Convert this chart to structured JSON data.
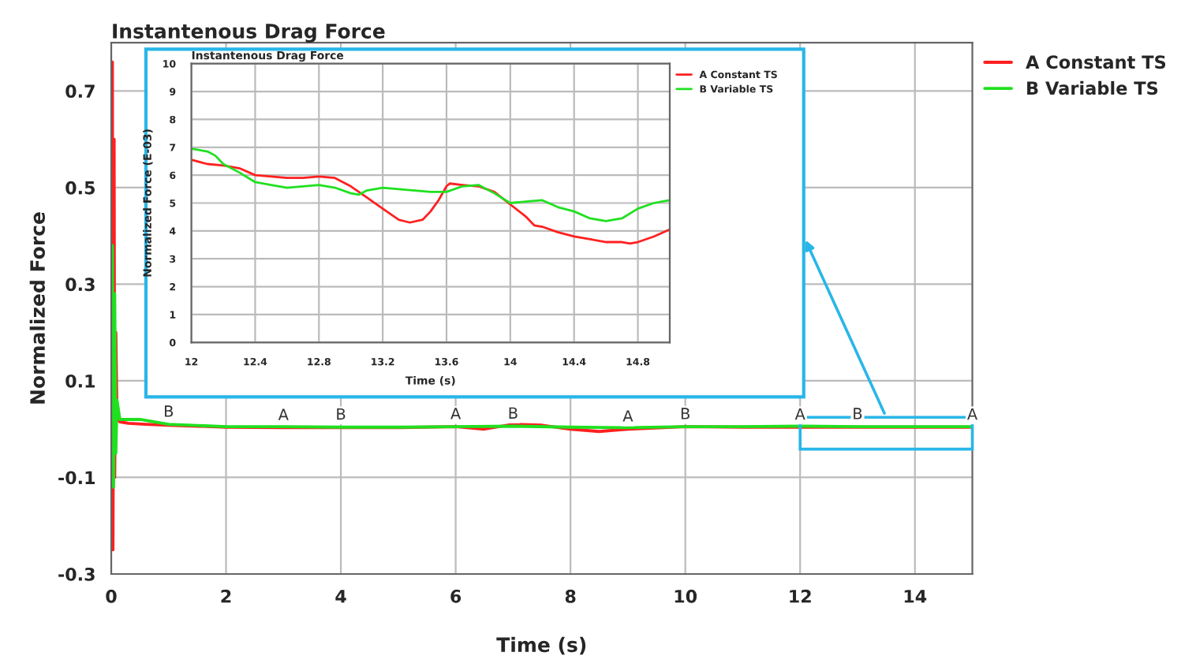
{
  "chart_data": [
    {
      "type": "line",
      "title": "Instantenous Drag Force",
      "xlabel": "Time (s)",
      "ylabel": "Normalized Force",
      "xlim": [
        0,
        15
      ],
      "xticks": [
        0,
        2,
        4,
        6,
        8,
        10,
        12,
        14
      ],
      "ylim": [
        -0.3,
        0.8
      ],
      "yticks": [
        -0.3,
        -0.1,
        0.1,
        0.3,
        0.5,
        0.7
      ],
      "grid": true,
      "legend": "top right",
      "series": [
        {
          "name": "A Constant TS",
          "color": "#ff2020",
          "x": [
            0,
            0.02,
            0.03,
            0.05,
            0.06,
            0.08,
            0.1,
            0.15,
            0.3,
            0.6,
            1,
            2,
            3,
            4,
            5,
            6,
            6.5,
            7,
            7.5,
            8,
            8.5,
            9,
            10,
            11,
            12,
            13,
            14,
            15
          ],
          "values": [
            0,
            0.76,
            -0.25,
            0.6,
            -0.1,
            0.2,
            0.02,
            0.015,
            0.012,
            0.01,
            0.008,
            0.004,
            0.003,
            0.003,
            0.003,
            0.005,
            0.0,
            0.01,
            0.008,
            0.0,
            -0.005,
            0.0,
            0.005,
            0.004,
            0.004,
            0.004,
            0.004,
            0.004
          ]
        },
        {
          "name": "B Variable TS",
          "color": "#20e020",
          "x": [
            0,
            0.02,
            0.04,
            0.06,
            0.08,
            0.1,
            0.15,
            0.5,
            1,
            2,
            3,
            4,
            5,
            6,
            7,
            8,
            9,
            10,
            11,
            12,
            13,
            14,
            15
          ],
          "values": [
            0,
            0.38,
            -0.12,
            0.28,
            -0.05,
            0.06,
            0.02,
            0.02,
            0.01,
            0.005,
            0.005,
            0.004,
            0.004,
            0.005,
            0.006,
            0.004,
            0.003,
            0.005,
            0.005,
            0.006,
            0.005,
            0.005,
            0.005
          ]
        }
      ],
      "annotations": [
        {
          "text": "B",
          "x": 1,
          "y": 0.01
        },
        {
          "text": "A",
          "x": 3,
          "y": 0.003
        },
        {
          "text": "B",
          "x": 4,
          "y": 0.004
        },
        {
          "text": "A",
          "x": 6,
          "y": 0.005
        },
        {
          "text": "B",
          "x": 7,
          "y": 0.006
        },
        {
          "text": "A",
          "x": 9,
          "y": 0.0
        },
        {
          "text": "B",
          "x": 10,
          "y": 0.005
        },
        {
          "text": "A",
          "x": 12,
          "y": 0.004
        },
        {
          "text": "B",
          "x": 13,
          "y": 0.005
        },
        {
          "text": "A",
          "x": 15,
          "y": 0.004
        }
      ]
    },
    {
      "type": "line",
      "title": "Instantenous Drag Force",
      "xlabel": "Time (s)",
      "ylabel": "Normalized Force (E-03)",
      "xlim": [
        12,
        15
      ],
      "xticks": [
        12,
        12.4,
        12.8,
        13.2,
        13.6,
        14,
        14.4,
        14.8
      ],
      "ylim": [
        0,
        10
      ],
      "yticks": [
        0,
        1,
        2,
        3,
        4,
        5,
        6,
        7,
        8,
        9,
        10
      ],
      "grid": true,
      "legend": "top right",
      "series": [
        {
          "name": "A Constant TS",
          "color": "#ff2020",
          "x": [
            12.0,
            12.1,
            12.2,
            12.3,
            12.4,
            12.5,
            12.6,
            12.7,
            12.8,
            12.9,
            13.0,
            13.05,
            13.1,
            13.2,
            13.3,
            13.37,
            13.45,
            13.5,
            13.55,
            13.6,
            13.62,
            13.7,
            13.8,
            13.9,
            14.0,
            14.1,
            14.15,
            14.2,
            14.3,
            14.4,
            14.5,
            14.6,
            14.7,
            14.75,
            14.8,
            14.9,
            15.0
          ],
          "values": [
            6.55,
            6.4,
            6.35,
            6.25,
            6.0,
            5.95,
            5.9,
            5.9,
            5.95,
            5.9,
            5.6,
            5.4,
            5.2,
            4.8,
            4.4,
            4.3,
            4.4,
            4.7,
            5.1,
            5.6,
            5.7,
            5.65,
            5.6,
            5.4,
            4.95,
            4.5,
            4.2,
            4.15,
            3.95,
            3.8,
            3.7,
            3.6,
            3.6,
            3.55,
            3.6,
            3.8,
            4.05
          ]
        },
        {
          "name": "B Variable TS",
          "color": "#20e020",
          "x": [
            12.0,
            12.1,
            12.15,
            12.2,
            12.3,
            12.4,
            12.5,
            12.6,
            12.7,
            12.8,
            12.9,
            13.0,
            13.05,
            13.1,
            13.2,
            13.3,
            13.4,
            13.5,
            13.6,
            13.7,
            13.8,
            13.9,
            14.0,
            14.1,
            14.2,
            14.3,
            14.4,
            14.5,
            14.6,
            14.7,
            14.8,
            14.9,
            15.0
          ],
          "values": [
            6.95,
            6.85,
            6.7,
            6.4,
            6.1,
            5.75,
            5.65,
            5.55,
            5.6,
            5.65,
            5.55,
            5.35,
            5.3,
            5.45,
            5.55,
            5.5,
            5.45,
            5.4,
            5.4,
            5.6,
            5.65,
            5.35,
            5.0,
            5.05,
            5.1,
            4.85,
            4.7,
            4.45,
            4.35,
            4.45,
            4.8,
            5.0,
            5.1
          ]
        }
      ]
    }
  ]
}
